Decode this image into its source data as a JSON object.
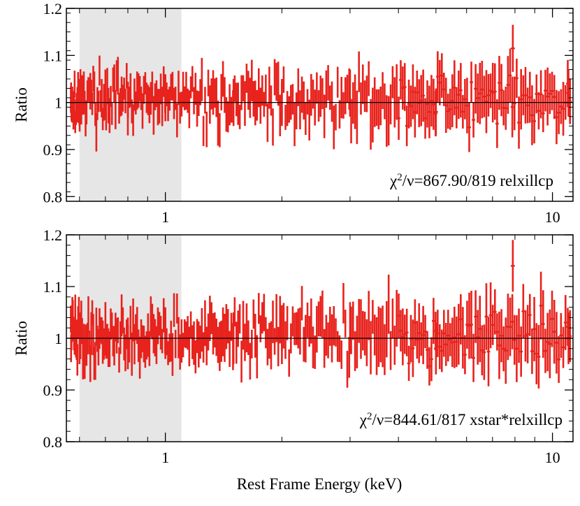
{
  "chart_data": [
    {
      "type": "scatter",
      "subtype": "errorbar-ratio",
      "ylabel": "Ratio",
      "ylim": [
        0.79,
        1.2
      ],
      "xlim": [
        0.555,
        11.3
      ],
      "xscale": "log",
      "yticks": [
        "0.8",
        "0.9",
        "1",
        "1.1",
        "1.2"
      ],
      "xticks": [
        "1",
        "10"
      ],
      "reference_line": 1.0,
      "shaded_region": [
        0.6,
        1.1
      ],
      "annotation": "867.90/819 relxillcp",
      "annotation_prefix": "χ",
      "annotation_sup": "2",
      "annotation_nu": "/ν=",
      "color": "#e8221c",
      "seed": 17,
      "points": [
        {
          "x": 0.6,
          "y": 1.0
        },
        {
          "x": 0.7,
          "y": 1.02
        },
        {
          "x": 0.8,
          "y": 0.98
        },
        {
          "x": 1.0,
          "y": 1.01
        },
        {
          "x": 1.5,
          "y": 1.0
        },
        {
          "x": 2.0,
          "y": 1.0
        },
        {
          "x": 3.0,
          "y": 1.02
        },
        {
          "x": 5.0,
          "y": 0.98
        },
        {
          "x": 7.9,
          "y": 1.115
        },
        {
          "x": 11.0,
          "y": 1.02
        }
      ]
    },
    {
      "type": "scatter",
      "subtype": "errorbar-ratio",
      "ylabel": "Ratio",
      "ylim": [
        0.8,
        1.2
      ],
      "xlim": [
        0.555,
        11.3
      ],
      "xscale": "log",
      "xlabel": "Rest Frame Energy (keV)",
      "yticks": [
        "0.8",
        "0.9",
        "1",
        "1.1",
        "1.2"
      ],
      "xticks": [
        "1",
        "10"
      ],
      "reference_line": 1.0,
      "shaded_region": [
        0.6,
        1.1
      ],
      "annotation": "844.61/817 xstar*relxillcp",
      "annotation_prefix": "χ",
      "annotation_sup": "2",
      "annotation_nu": "/ν=",
      "color": "#e8221c",
      "seed": 41,
      "points": [
        {
          "x": 0.6,
          "y": 1.0
        },
        {
          "x": 0.7,
          "y": 1.02
        },
        {
          "x": 0.8,
          "y": 0.99
        },
        {
          "x": 1.0,
          "y": 1.01
        },
        {
          "x": 1.5,
          "y": 1.0
        },
        {
          "x": 2.0,
          "y": 1.0
        },
        {
          "x": 3.0,
          "y": 1.02
        },
        {
          "x": 5.0,
          "y": 0.98
        },
        {
          "x": 7.9,
          "y": 1.14
        },
        {
          "x": 11.0,
          "y": 1.0
        }
      ]
    }
  ]
}
